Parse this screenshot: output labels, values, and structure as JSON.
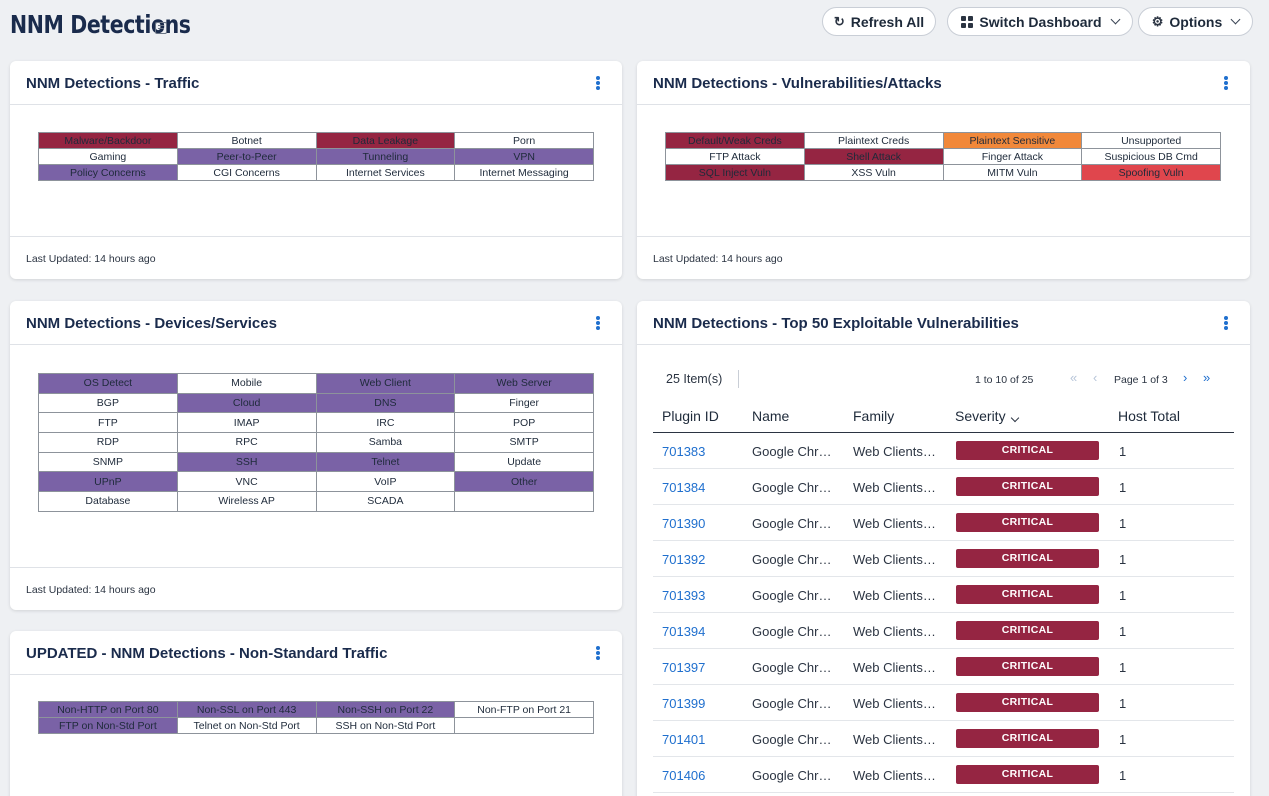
{
  "header": {
    "title": "NNM Detections",
    "refresh_label": "Refresh All",
    "switch_label": "Switch Dashboard",
    "options_label": "Options"
  },
  "traffic": {
    "title": "NNM Detections - Traffic",
    "footer": "Last Updated: 14 hours ago",
    "rows": [
      [
        {
          "label": "Malware/Backdoor",
          "color": "maroon"
        },
        {
          "label": "Botnet",
          "color": ""
        },
        {
          "label": "Data Leakage",
          "color": "maroon"
        },
        {
          "label": "Porn",
          "color": ""
        }
      ],
      [
        {
          "label": "Gaming",
          "color": ""
        },
        {
          "label": "Peer-to-Peer",
          "color": "purple"
        },
        {
          "label": "Tunneling",
          "color": "purple"
        },
        {
          "label": "VPN",
          "color": "purple"
        }
      ],
      [
        {
          "label": "Policy Concerns",
          "color": "purple"
        },
        {
          "label": "CGI Concerns",
          "color": ""
        },
        {
          "label": "Internet Services",
          "color": ""
        },
        {
          "label": "Internet Messaging",
          "color": ""
        }
      ]
    ]
  },
  "vulns": {
    "title": "NNM Detections - Vulnerabilities/Attacks",
    "footer": "Last Updated: 14 hours ago",
    "rows": [
      [
        {
          "label": "Default/Weak Creds",
          "color": "maroon"
        },
        {
          "label": "Plaintext Creds",
          "color": ""
        },
        {
          "label": "Plaintext Sensitive",
          "color": "orange"
        },
        {
          "label": "Unsupported",
          "color": ""
        }
      ],
      [
        {
          "label": "FTP Attack",
          "color": ""
        },
        {
          "label": "Shell Attack",
          "color": "maroon"
        },
        {
          "label": "Finger Attack",
          "color": ""
        },
        {
          "label": "Suspicious DB Cmd",
          "color": ""
        }
      ],
      [
        {
          "label": "SQL Inject Vuln",
          "color": "maroon"
        },
        {
          "label": "XSS Vuln",
          "color": ""
        },
        {
          "label": "MITM Vuln",
          "color": ""
        },
        {
          "label": "Spoofing Vuln",
          "color": "red"
        }
      ]
    ]
  },
  "devices": {
    "title": "NNM Detections - Devices/Services",
    "footer": "Last Updated: 14 hours ago",
    "rows": [
      [
        {
          "label": "OS Detect",
          "color": "purple"
        },
        {
          "label": "Mobile",
          "color": ""
        },
        {
          "label": "Web Client",
          "color": "purple"
        },
        {
          "label": "Web Server",
          "color": "purple"
        }
      ],
      [
        {
          "label": "BGP",
          "color": ""
        },
        {
          "label": "Cloud",
          "color": "purple"
        },
        {
          "label": "DNS",
          "color": "purple"
        },
        {
          "label": "Finger",
          "color": ""
        }
      ],
      [
        {
          "label": "FTP",
          "color": ""
        },
        {
          "label": "IMAP",
          "color": ""
        },
        {
          "label": "IRC",
          "color": ""
        },
        {
          "label": "POP",
          "color": ""
        }
      ],
      [
        {
          "label": "RDP",
          "color": ""
        },
        {
          "label": "RPC",
          "color": ""
        },
        {
          "label": "Samba",
          "color": ""
        },
        {
          "label": "SMTP",
          "color": ""
        }
      ],
      [
        {
          "label": "SNMP",
          "color": ""
        },
        {
          "label": "SSH",
          "color": "purple"
        },
        {
          "label": "Telnet",
          "color": "purple"
        },
        {
          "label": "Update",
          "color": ""
        }
      ],
      [
        {
          "label": "UPnP",
          "color": "purple"
        },
        {
          "label": "VNC",
          "color": ""
        },
        {
          "label": "VoIP",
          "color": ""
        },
        {
          "label": "Other",
          "color": "purple"
        }
      ],
      [
        {
          "label": "Database",
          "color": ""
        },
        {
          "label": "Wireless AP",
          "color": ""
        },
        {
          "label": "SCADA",
          "color": ""
        },
        {
          "label": "",
          "color": ""
        }
      ]
    ]
  },
  "nonstd": {
    "title": "UPDATED - NNM Detections - Non-Standard Traffic",
    "rows": [
      [
        {
          "label": "Non-HTTP on Port 80",
          "color": "purple"
        },
        {
          "label": "Non-SSL on Port 443",
          "color": "purple"
        },
        {
          "label": "Non-SSH on Port 22",
          "color": "purple"
        },
        {
          "label": "Non-FTP on Port 21",
          "color": ""
        }
      ],
      [
        {
          "label": "FTP on Non-Std Port",
          "color": "purple"
        },
        {
          "label": "Telnet on Non-Std Port",
          "color": ""
        },
        {
          "label": "SSH on Non-Std Port",
          "color": ""
        },
        {
          "label": "",
          "color": ""
        }
      ]
    ]
  },
  "top50": {
    "title": "NNM Detections - Top 50 Exploitable Vulnerabilities",
    "items_count": "25 Item(s)",
    "range": "1 to 10 of 25",
    "page_label": "Page 1 of 3",
    "columns": {
      "plugin": "Plugin ID",
      "name": "Name",
      "family": "Family",
      "severity": "Severity",
      "host": "Host Total"
    },
    "rows": [
      {
        "plugin_id": "701383",
        "name": "Google Chr…",
        "family": "Web Clients…",
        "severity": "CRITICAL",
        "host_total": "1"
      },
      {
        "plugin_id": "701384",
        "name": "Google Chr…",
        "family": "Web Clients…",
        "severity": "CRITICAL",
        "host_total": "1"
      },
      {
        "plugin_id": "701390",
        "name": "Google Chr…",
        "family": "Web Clients…",
        "severity": "CRITICAL",
        "host_total": "1"
      },
      {
        "plugin_id": "701392",
        "name": "Google Chr…",
        "family": "Web Clients…",
        "severity": "CRITICAL",
        "host_total": "1"
      },
      {
        "plugin_id": "701393",
        "name": "Google Chr…",
        "family": "Web Clients…",
        "severity": "CRITICAL",
        "host_total": "1"
      },
      {
        "plugin_id": "701394",
        "name": "Google Chr…",
        "family": "Web Clients…",
        "severity": "CRITICAL",
        "host_total": "1"
      },
      {
        "plugin_id": "701397",
        "name": "Google Chr…",
        "family": "Web Clients…",
        "severity": "CRITICAL",
        "host_total": "1"
      },
      {
        "plugin_id": "701399",
        "name": "Google Chr…",
        "family": "Web Clients…",
        "severity": "CRITICAL",
        "host_total": "1"
      },
      {
        "plugin_id": "701401",
        "name": "Google Chr…",
        "family": "Web Clients…",
        "severity": "CRITICAL",
        "host_total": "1"
      },
      {
        "plugin_id": "701406",
        "name": "Google Chr…",
        "family": "Web Clients…",
        "severity": "CRITICAL",
        "host_total": "1"
      }
    ]
  }
}
